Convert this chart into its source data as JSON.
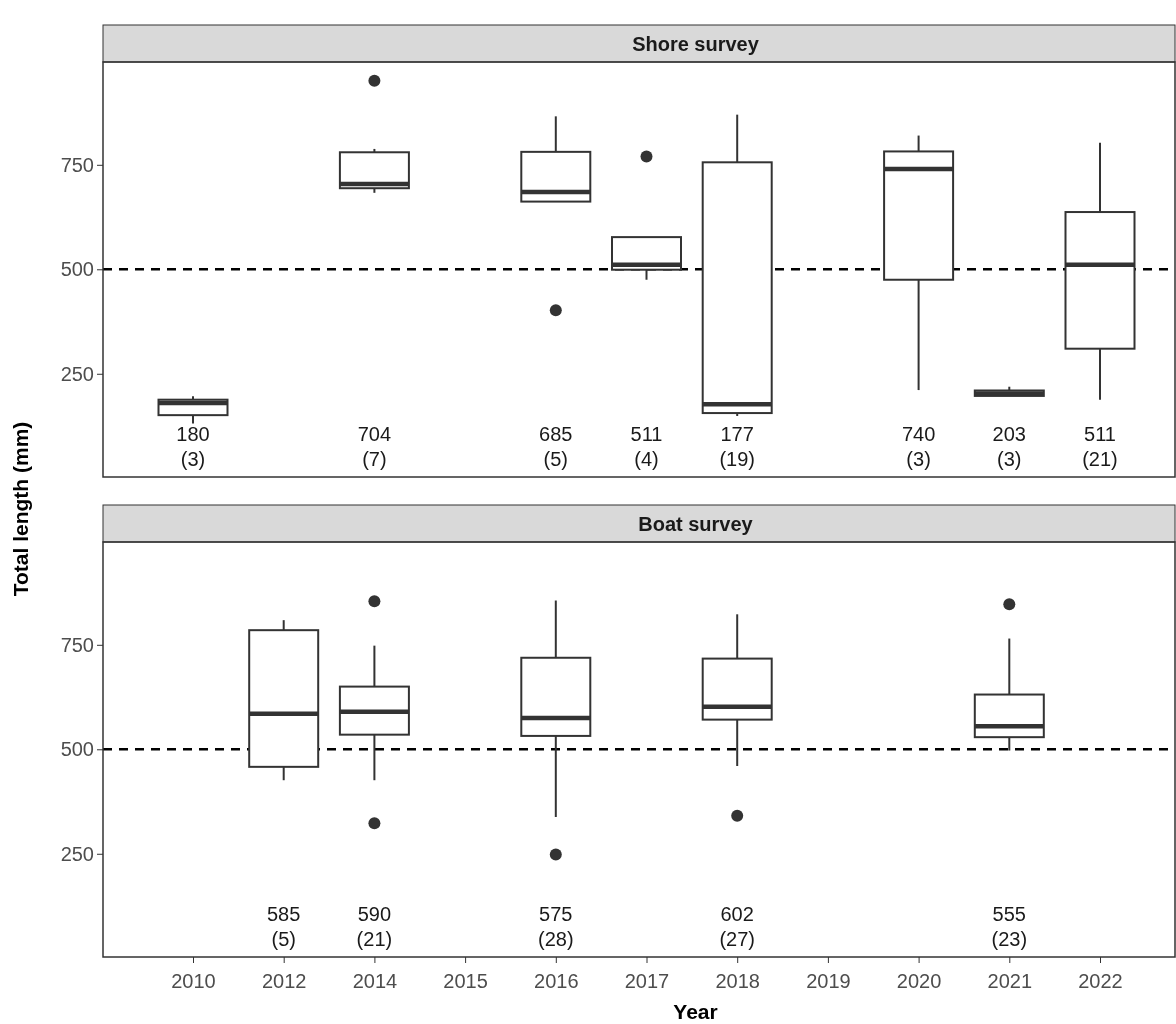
{
  "chart_data": [
    {
      "type": "box",
      "title": "Shore survey",
      "ylabel": "Total length (mm)",
      "categories": [
        "2010",
        "2012",
        "2014",
        "2015",
        "2016",
        "2017",
        "2018",
        "2019",
        "2020",
        "2021",
        "2022"
      ],
      "ylim": [
        3,
        996
      ],
      "yticks": [
        250,
        500,
        750
      ],
      "tick_labels": "y",
      "grid": false,
      "boxes": [
        {
          "low": 131,
          "q1": 151,
          "median": 180,
          "q3": 188,
          "high": 196
        },
        null,
        {
          "low": 683,
          "q1": 694,
          "median": 704,
          "q3": 780,
          "high": 788,
          "outliers": [
            951
          ]
        },
        null,
        {
          "low": 662,
          "q1": 662,
          "median": 685,
          "q3": 781,
          "high": 866,
          "outliers": [
            402
          ]
        },
        {
          "low": 475,
          "q1": 499,
          "median": 511,
          "q3": 577,
          "high": 577,
          "outliers": [
            770
          ]
        },
        {
          "low": 149,
          "q1": 156,
          "median": 177,
          "q3": 756,
          "high": 870
        },
        null,
        {
          "low": 211,
          "q1": 475,
          "median": 740,
          "q3": 782,
          "high": 820
        },
        {
          "low": 197,
          "q1": 197,
          "median": 203,
          "q3": 210,
          "high": 219
        },
        {
          "low": 188,
          "q1": 310,
          "median": 511,
          "q3": 637,
          "high": 803
        }
      ],
      "ref_lines": [
        {
          "axis": "y",
          "value": 500,
          "color": "#000000",
          "line_style": "dashed"
        }
      ],
      "annotations": [
        "180\n(3)",
        "704\n(7)",
        "685\n(5)",
        "511\n(4)",
        "177\n(19)",
        "740\n(3)",
        "203\n(3)",
        "511\n(21)"
      ]
    },
    {
      "type": "box",
      "title": "Boat survey",
      "xlabel": "Year",
      "categories": [
        "2010",
        "2012",
        "2014",
        "2015",
        "2016",
        "2017",
        "2018",
        "2019",
        "2020",
        "2021",
        "2022"
      ],
      "ylim": [
        3,
        996
      ],
      "yticks": [
        250,
        500,
        750
      ],
      "grid": false,
      "boxes": [
        null,
        {
          "low": 426,
          "q1": 458,
          "median": 585,
          "q3": 785,
          "high": 809
        },
        {
          "low": 426,
          "q1": 535,
          "median": 590,
          "q3": 650,
          "high": 748,
          "outliers": [
            854,
            323
          ]
        },
        null,
        {
          "low": 338,
          "q1": 532,
          "median": 575,
          "q3": 719,
          "high": 856,
          "outliers": [
            248
          ]
        },
        null,
        {
          "low": 460,
          "q1": 571,
          "median": 602,
          "q3": 717,
          "high": 823,
          "outliers": [
            341
          ]
        },
        null,
        null,
        {
          "low": 497,
          "q1": 529,
          "median": 555,
          "q3": 631,
          "high": 765,
          "outliers": [
            847
          ]
        },
        null
      ],
      "ref_lines": [
        {
          "axis": "y",
          "value": 500,
          "color": "#000000",
          "line_style": "dashed"
        }
      ],
      "annotations": [
        "585\n(5)",
        "590\n(21)",
        "575\n(28)",
        "602\n(27)",
        "555\n(23)"
      ]
    }
  ]
}
